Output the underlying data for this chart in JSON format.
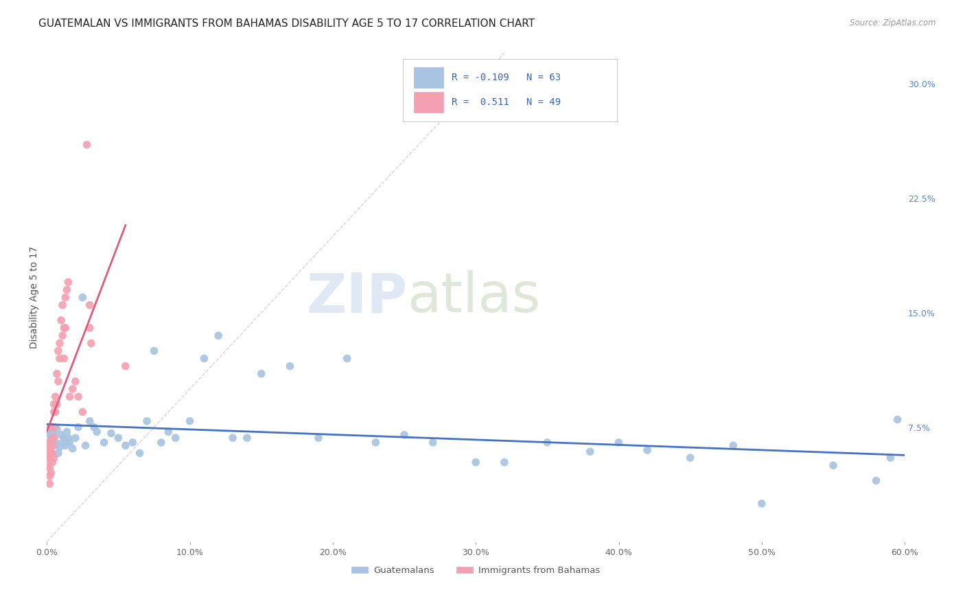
{
  "title": "GUATEMALAN VS IMMIGRANTS FROM BAHAMAS DISABILITY AGE 5 TO 17 CORRELATION CHART",
  "source": "Source: ZipAtlas.com",
  "ylabel": "Disability Age 5 to 17",
  "xlim": [
    0.0,
    0.6
  ],
  "ylim": [
    0.0,
    0.32
  ],
  "xticks": [
    0.0,
    0.1,
    0.2,
    0.3,
    0.4,
    0.5,
    0.6
  ],
  "xticklabels": [
    "0.0%",
    "10.0%",
    "20.0%",
    "30.0%",
    "40.0%",
    "50.0%",
    "60.0%"
  ],
  "yticks_right": [
    0.075,
    0.15,
    0.225,
    0.3
  ],
  "yticklabels_right": [
    "7.5%",
    "15.0%",
    "22.5%",
    "30.0%"
  ],
  "legend_labels": [
    "Guatemalans",
    "Immigrants from Bahamas"
  ],
  "blue_color": "#a8c4e0",
  "pink_color": "#f4a0b0",
  "blue_line_color": "#4472c4",
  "pink_line_color": "#e05a7a",
  "title_fontsize": 11,
  "axis_label_fontsize": 10,
  "tick_fontsize": 9,
  "background_color": "#ffffff",
  "grid_color": "#dde0e8",
  "watermark_zip": "ZIP",
  "watermark_atlas": "atlas",
  "blue_scatter_x": [
    0.001,
    0.002,
    0.002,
    0.003,
    0.003,
    0.004,
    0.005,
    0.005,
    0.006,
    0.007,
    0.008,
    0.009,
    0.01,
    0.011,
    0.012,
    0.013,
    0.014,
    0.015,
    0.016,
    0.018,
    0.02,
    0.022,
    0.025,
    0.027,
    0.03,
    0.033,
    0.035,
    0.04,
    0.045,
    0.05,
    0.055,
    0.06,
    0.065,
    0.07,
    0.075,
    0.08,
    0.085,
    0.09,
    0.1,
    0.11,
    0.12,
    0.13,
    0.14,
    0.15,
    0.17,
    0.19,
    0.21,
    0.23,
    0.25,
    0.27,
    0.3,
    0.32,
    0.35,
    0.38,
    0.4,
    0.42,
    0.45,
    0.48,
    0.5,
    0.55,
    0.58,
    0.59,
    0.595
  ],
  "blue_scatter_y": [
    0.075,
    0.07,
    0.065,
    0.068,
    0.072,
    0.07,
    0.063,
    0.071,
    0.065,
    0.074,
    0.058,
    0.062,
    0.07,
    0.065,
    0.068,
    0.063,
    0.072,
    0.068,
    0.065,
    0.061,
    0.068,
    0.075,
    0.16,
    0.063,
    0.079,
    0.075,
    0.072,
    0.065,
    0.071,
    0.068,
    0.063,
    0.065,
    0.058,
    0.079,
    0.125,
    0.065,
    0.072,
    0.068,
    0.079,
    0.12,
    0.135,
    0.068,
    0.068,
    0.11,
    0.115,
    0.068,
    0.12,
    0.065,
    0.07,
    0.065,
    0.052,
    0.052,
    0.065,
    0.059,
    0.065,
    0.06,
    0.055,
    0.063,
    0.025,
    0.05,
    0.04,
    0.055,
    0.08
  ],
  "pink_scatter_x": [
    0.001,
    0.001,
    0.001,
    0.001,
    0.002,
    0.002,
    0.002,
    0.002,
    0.002,
    0.003,
    0.003,
    0.003,
    0.003,
    0.004,
    0.004,
    0.004,
    0.004,
    0.005,
    0.005,
    0.005,
    0.005,
    0.005,
    0.006,
    0.006,
    0.007,
    0.007,
    0.008,
    0.008,
    0.009,
    0.009,
    0.01,
    0.011,
    0.011,
    0.012,
    0.012,
    0.013,
    0.013,
    0.014,
    0.015,
    0.016,
    0.018,
    0.02,
    0.022,
    0.025,
    0.028,
    0.03,
    0.03,
    0.031,
    0.055
  ],
  "pink_scatter_y": [
    0.065,
    0.06,
    0.055,
    0.05,
    0.062,
    0.055,
    0.048,
    0.043,
    0.038,
    0.075,
    0.063,
    0.058,
    0.045,
    0.068,
    0.063,
    0.058,
    0.052,
    0.09,
    0.085,
    0.075,
    0.068,
    0.055,
    0.095,
    0.085,
    0.11,
    0.09,
    0.125,
    0.105,
    0.13,
    0.12,
    0.145,
    0.155,
    0.135,
    0.14,
    0.12,
    0.16,
    0.14,
    0.165,
    0.17,
    0.095,
    0.1,
    0.105,
    0.095,
    0.085,
    0.26,
    0.155,
    0.14,
    0.13,
    0.115
  ]
}
